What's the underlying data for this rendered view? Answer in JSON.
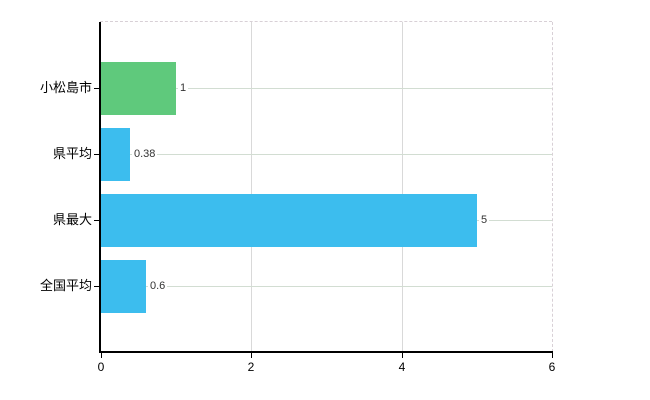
{
  "chart_data": {
    "type": "bar",
    "orientation": "horizontal",
    "title": "",
    "xlabel": "",
    "ylabel": "",
    "categories": [
      "小松島市",
      "県平均",
      "県最大",
      "全国平均"
    ],
    "values": [
      1,
      0.38,
      5,
      0.6
    ],
    "value_labels": [
      "1",
      "0.38",
      "5",
      "0.6"
    ],
    "bar_colors": [
      "#5fc97c",
      "#3cbdee",
      "#3cbdee",
      "#3cbdee"
    ],
    "xlim": [
      0,
      6
    ],
    "x_ticks": [
      0,
      2,
      4,
      6
    ],
    "x_tick_labels": [
      "0",
      "2",
      "4",
      "6"
    ],
    "grid": true,
    "legend": false
  },
  "colors": {
    "background": "#ffffff",
    "axis": "#000000",
    "vertical_gridline": "#d9d9d9",
    "category_gridline": "#d2ddd2",
    "frame_dashed": "#d8d0d6",
    "category_text": "#000000",
    "value_text": "#333333",
    "tick_text": "#000000"
  }
}
